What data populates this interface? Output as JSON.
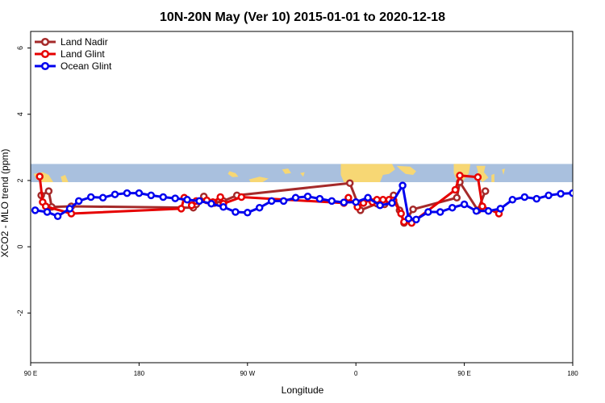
{
  "chart_data": {
    "type": "line",
    "title": "10N-20N May (Ver 10)   2015-01-01 to 2020-12-18",
    "xlabel": "Longitude",
    "ylabel": "XCO2 - MLO trend (ppm)",
    "xlim": [
      -180,
      180
    ],
    "ylim": [
      -3.5,
      6.5
    ],
    "x_ticks": [
      {
        "value": -180,
        "label": "90 E"
      },
      {
        "value": -108,
        "label": "180"
      },
      {
        "value": -36,
        "label": "90 W"
      },
      {
        "value": 36,
        "label": "0"
      },
      {
        "value": 108,
        "label": "90 E"
      },
      {
        "value": 180,
        "label": "180"
      }
    ],
    "y_ticks": [
      {
        "value": -2,
        "label": "-2"
      },
      {
        "value": 0,
        "label": "0"
      },
      {
        "value": 2,
        "label": "2"
      },
      {
        "value": 4,
        "label": "4"
      },
      {
        "value": 6,
        "label": "6"
      }
    ],
    "legend_position": "top-left",
    "map_strip": {
      "ymin": 1.95,
      "ymax": 2.5,
      "ocean_color": "#a9c0de",
      "land_color": "#f7d774"
    },
    "series": [
      {
        "name": "Land Nadir",
        "color": "#a52a2a",
        "points": [
          [
            -173,
            1.55
          ],
          [
            -168,
            1.68
          ],
          [
            -166,
            1.2
          ],
          [
            -153,
            1.22
          ],
          [
            -72,
            1.18
          ],
          [
            -70,
            1.28
          ],
          [
            -65,
            1.52
          ],
          [
            -58,
            1.32
          ],
          [
            -52,
            1.38
          ],
          [
            -43,
            1.55
          ],
          [
            32,
            1.92
          ],
          [
            39,
            1.1
          ],
          [
            50,
            1.3
          ],
          [
            55,
            1.28
          ],
          [
            61,
            1.55
          ],
          [
            65,
            1.1
          ],
          [
            68,
            0.72
          ],
          [
            74,
            1.13
          ],
          [
            103,
            1.48
          ],
          [
            105,
            1.95
          ],
          [
            117,
            1.1
          ],
          [
            122,
            1.68
          ]
        ]
      },
      {
        "name": "Land Glint",
        "color": "#e60000",
        "points": [
          [
            -174,
            2.12
          ],
          [
            -172,
            1.35
          ],
          [
            -170,
            1.22
          ],
          [
            -153,
            1.0
          ],
          [
            -80,
            1.15
          ],
          [
            -78,
            1.48
          ],
          [
            -73,
            1.25
          ],
          [
            -70,
            1.38
          ],
          [
            -63,
            1.4
          ],
          [
            -59,
            1.35
          ],
          [
            -54,
            1.5
          ],
          [
            -52,
            1.3
          ],
          [
            -40,
            1.5
          ],
          [
            28,
            1.32
          ],
          [
            31,
            1.48
          ],
          [
            37,
            1.2
          ],
          [
            41,
            1.32
          ],
          [
            44,
            1.45
          ],
          [
            47,
            1.35
          ],
          [
            50,
            1.42
          ],
          [
            54,
            1.42
          ],
          [
            58,
            1.42
          ],
          [
            61,
            1.4
          ],
          [
            66,
            1.0
          ],
          [
            68,
            0.75
          ],
          [
            73,
            0.72
          ],
          [
            102,
            1.72
          ],
          [
            105,
            2.15
          ],
          [
            117,
            2.1
          ],
          [
            120,
            1.22
          ],
          [
            131,
            1.0
          ]
        ]
      },
      {
        "name": "Ocean Glint",
        "color": "#0000ee",
        "points": [
          [
            -177,
            1.1
          ],
          [
            -169,
            1.05
          ],
          [
            -162,
            0.92
          ],
          [
            -154,
            1.15
          ],
          [
            -148,
            1.38
          ],
          [
            -140,
            1.5
          ],
          [
            -132,
            1.48
          ],
          [
            -124,
            1.58
          ],
          [
            -116,
            1.62
          ],
          [
            -108,
            1.62
          ],
          [
            -100,
            1.55
          ],
          [
            -92,
            1.5
          ],
          [
            -84,
            1.46
          ],
          [
            -76,
            1.42
          ],
          [
            -68,
            1.38
          ],
          [
            -60,
            1.3
          ],
          [
            -52,
            1.2
          ],
          [
            -44,
            1.05
          ],
          [
            -36,
            1.03
          ],
          [
            -28,
            1.18
          ],
          [
            -20,
            1.38
          ],
          [
            -12,
            1.38
          ],
          [
            -4,
            1.48
          ],
          [
            4,
            1.52
          ],
          [
            12,
            1.45
          ],
          [
            20,
            1.38
          ],
          [
            28,
            1.34
          ],
          [
            36,
            1.35
          ],
          [
            44,
            1.48
          ],
          [
            52,
            1.25
          ],
          [
            60,
            1.32
          ],
          [
            67,
            1.85
          ],
          [
            71,
            0.85
          ],
          [
            76,
            0.82
          ],
          [
            84,
            1.05
          ],
          [
            92,
            1.05
          ],
          [
            100,
            1.18
          ],
          [
            108,
            1.28
          ],
          [
            116,
            1.08
          ],
          [
            124,
            1.08
          ],
          [
            132,
            1.15
          ],
          [
            140,
            1.42
          ],
          [
            148,
            1.5
          ],
          [
            156,
            1.45
          ],
          [
            164,
            1.55
          ],
          [
            172,
            1.6
          ],
          [
            180,
            1.62
          ]
        ]
      }
    ]
  }
}
